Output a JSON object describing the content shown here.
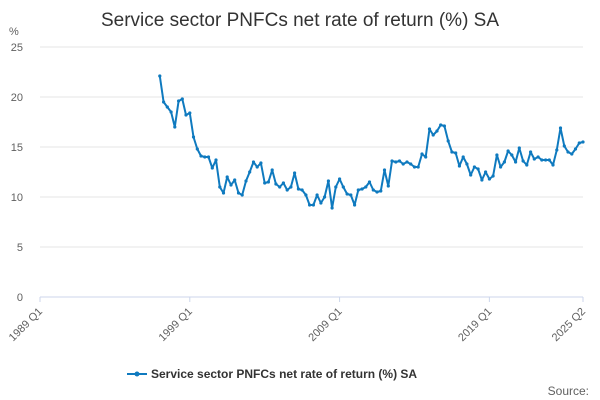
{
  "chart_data": {
    "type": "line",
    "title": "Service sector PNFCs net rate of return (%) SA",
    "ylabel": "%",
    "xlabel": "",
    "ylim": [
      0,
      25
    ],
    "y_ticks": [
      "0",
      "5",
      "10",
      "15",
      "20",
      "25"
    ],
    "x_ticks": [
      "1989 Q1",
      "1999 Q1",
      "2009 Q1",
      "2019 Q1",
      "2025 Q2"
    ],
    "grid": true,
    "legend_position": "bottom",
    "series": [
      {
        "name": "Service sector PNFCs net rate of return (%) SA",
        "color": "#0f7abf",
        "points": [
          [
            "1997 Q1",
            22.1
          ],
          [
            "1997 Q2",
            19.5
          ],
          [
            "1997 Q3",
            19.0
          ],
          [
            "1997 Q4",
            18.5
          ],
          [
            "1998 Q1",
            17.0
          ],
          [
            "1998 Q2",
            19.6
          ],
          [
            "1998 Q3",
            19.8
          ],
          [
            "1998 Q4",
            18.2
          ],
          [
            "1999 Q1",
            18.4
          ],
          [
            "1999 Q2",
            16.0
          ],
          [
            "1999 Q3",
            14.8
          ],
          [
            "1999 Q4",
            14.1
          ],
          [
            "2000 Q1",
            14.0
          ],
          [
            "2000 Q2",
            14.0
          ],
          [
            "2000 Q3",
            12.9
          ],
          [
            "2000 Q4",
            13.7
          ],
          [
            "2001 Q1",
            11.0
          ],
          [
            "2001 Q2",
            10.4
          ],
          [
            "2001 Q3",
            12.0
          ],
          [
            "2001 Q4",
            11.2
          ],
          [
            "2002 Q1",
            11.7
          ],
          [
            "2002 Q2",
            10.4
          ],
          [
            "2002 Q3",
            10.2
          ],
          [
            "2002 Q4",
            11.6
          ],
          [
            "2003 Q1",
            12.5
          ],
          [
            "2003 Q2",
            13.5
          ],
          [
            "2003 Q3",
            13.0
          ],
          [
            "2003 Q4",
            13.4
          ],
          [
            "2004 Q1",
            11.4
          ],
          [
            "2004 Q2",
            11.5
          ],
          [
            "2004 Q3",
            12.7
          ],
          [
            "2004 Q4",
            11.3
          ],
          [
            "2005 Q1",
            11.0
          ],
          [
            "2005 Q2",
            11.4
          ],
          [
            "2005 Q3",
            10.7
          ],
          [
            "2005 Q4",
            11.0
          ],
          [
            "2006 Q1",
            12.4
          ],
          [
            "2006 Q2",
            10.8
          ],
          [
            "2006 Q3",
            10.7
          ],
          [
            "2006 Q4",
            10.2
          ],
          [
            "2007 Q1",
            9.2
          ],
          [
            "2007 Q2",
            9.2
          ],
          [
            "2007 Q3",
            10.2
          ],
          [
            "2007 Q4",
            9.4
          ],
          [
            "2008 Q1",
            10.0
          ],
          [
            "2008 Q2",
            11.6
          ],
          [
            "2008 Q3",
            8.9
          ],
          [
            "2008 Q4",
            11.0
          ],
          [
            "2009 Q1",
            11.8
          ],
          [
            "2009 Q2",
            11.0
          ],
          [
            "2009 Q3",
            10.3
          ],
          [
            "2009 Q4",
            10.2
          ],
          [
            "2010 Q1",
            9.2
          ],
          [
            "2010 Q2",
            10.7
          ],
          [
            "2010 Q3",
            10.8
          ],
          [
            "2010 Q4",
            11.0
          ],
          [
            "2011 Q1",
            11.5
          ],
          [
            "2011 Q2",
            10.7
          ],
          [
            "2011 Q3",
            10.5
          ],
          [
            "2011 Q4",
            10.6
          ],
          [
            "2012 Q1",
            12.7
          ],
          [
            "2012 Q2",
            11.1
          ],
          [
            "2012 Q3",
            13.6
          ],
          [
            "2012 Q4",
            13.5
          ],
          [
            "2013 Q1",
            13.6
          ],
          [
            "2013 Q2",
            13.3
          ],
          [
            "2013 Q3",
            13.5
          ],
          [
            "2013 Q4",
            13.3
          ],
          [
            "2014 Q1",
            13.0
          ],
          [
            "2014 Q2",
            13.0
          ],
          [
            "2014 Q3",
            14.3
          ],
          [
            "2014 Q4",
            14.0
          ],
          [
            "2015 Q1",
            16.8
          ],
          [
            "2015 Q2",
            16.2
          ],
          [
            "2015 Q3",
            16.6
          ],
          [
            "2015 Q4",
            17.2
          ],
          [
            "2016 Q1",
            17.1
          ],
          [
            "2016 Q2",
            15.6
          ],
          [
            "2016 Q3",
            14.5
          ],
          [
            "2016 Q4",
            14.4
          ],
          [
            "2017 Q1",
            13.1
          ],
          [
            "2017 Q2",
            14.0
          ],
          [
            "2017 Q3",
            13.3
          ],
          [
            "2017 Q4",
            12.2
          ],
          [
            "2018 Q1",
            13.0
          ],
          [
            "2018 Q2",
            12.8
          ],
          [
            "2018 Q3",
            11.7
          ],
          [
            "2018 Q4",
            12.5
          ],
          [
            "2019 Q1",
            11.8
          ],
          [
            "2019 Q2",
            12.1
          ],
          [
            "2019 Q3",
            14.2
          ],
          [
            "2019 Q4",
            13.0
          ],
          [
            "2020 Q1",
            13.5
          ],
          [
            "2020 Q2",
            14.6
          ],
          [
            "2020 Q3",
            14.2
          ],
          [
            "2020 Q4",
            13.5
          ],
          [
            "2021 Q1",
            14.9
          ],
          [
            "2021 Q2",
            13.6
          ],
          [
            "2021 Q3",
            13.2
          ],
          [
            "2021 Q4",
            14.5
          ],
          [
            "2022 Q1",
            13.8
          ],
          [
            "2022 Q2",
            14.0
          ],
          [
            "2022 Q3",
            13.7
          ],
          [
            "2022 Q4",
            13.7
          ],
          [
            "2023 Q1",
            13.7
          ],
          [
            "2023 Q2",
            13.2
          ],
          [
            "2023 Q3",
            14.7
          ],
          [
            "2023 Q4",
            16.9
          ],
          [
            "2024 Q1",
            15.1
          ],
          [
            "2024 Q2",
            14.5
          ],
          [
            "2024 Q3",
            14.3
          ],
          [
            "2024 Q4",
            14.8
          ],
          [
            "2025 Q1",
            15.4
          ],
          [
            "2025 Q2",
            15.5
          ]
        ]
      }
    ]
  },
  "legend": {
    "label": "Service sector PNFCs net rate of return (%) SA"
  },
  "source": {
    "label": "Source:"
  }
}
